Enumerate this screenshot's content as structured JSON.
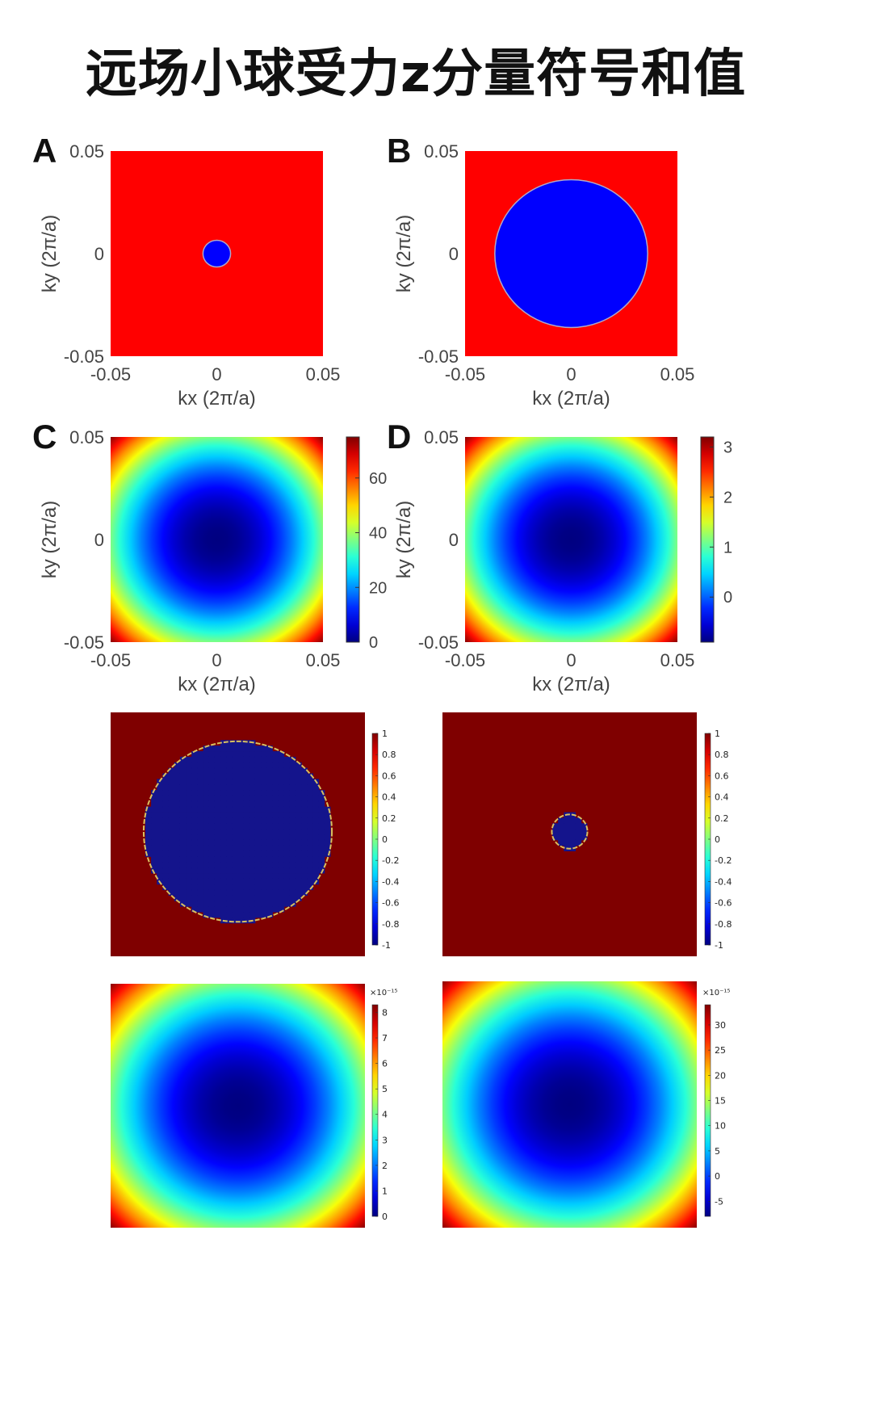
{
  "title": "远场小球受力z分量符号和值",
  "colors": {
    "red": "#ff0000",
    "blue": "#0000ff",
    "darkred": "#7f0000",
    "darkblue": "#14148c",
    "edge": "#d8c060"
  },
  "chart_data": [
    {
      "id": "A",
      "label": "A",
      "type": "heatmap",
      "kind": "sign",
      "xlabel": "kx (2π/a)",
      "ylabel": "ky (2π/a)",
      "xlim": [
        -0.05,
        0.05
      ],
      "ylim": [
        -0.05,
        0.05
      ],
      "xticks": [
        "-0.05",
        "0",
        "0.05"
      ],
      "yticks": [
        "0.05",
        "0",
        "-0.05"
      ],
      "circle_radius": 0.0065
    },
    {
      "id": "B",
      "label": "B",
      "type": "heatmap",
      "kind": "sign",
      "xlabel": "kx (2π/a)",
      "ylabel": "ky (2π/a)",
      "xlim": [
        -0.05,
        0.05
      ],
      "ylim": [
        -0.05,
        0.05
      ],
      "xticks": [
        "-0.05",
        "0",
        "0.05"
      ],
      "yticks": [
        "0.05",
        "0",
        "-0.05"
      ],
      "circle_radius": 0.036
    },
    {
      "id": "C",
      "label": "C",
      "type": "heatmap",
      "kind": "value",
      "xlabel": "kx (2π/a)",
      "ylabel": "ky (2π/a)",
      "xlim": [
        -0.05,
        0.05
      ],
      "ylim": [
        -0.05,
        0.05
      ],
      "xticks": [
        "-0.05",
        "0",
        "0.05"
      ],
      "yticks": [
        "0.05",
        "0",
        "-0.05"
      ],
      "colorbar": {
        "min": 0,
        "max": 75,
        "ticks": [
          "60",
          "40",
          "20",
          "0"
        ],
        "tick_values": [
          60,
          40,
          20,
          0
        ]
      }
    },
    {
      "id": "D",
      "label": "D",
      "type": "heatmap",
      "kind": "value",
      "xlabel": "kx (2π/a)",
      "ylabel": "ky (2π/a)",
      "xlim": [
        -0.05,
        0.05
      ],
      "ylim": [
        -0.05,
        0.05
      ],
      "xticks": [
        "-0.05",
        "0",
        "0.05"
      ],
      "yticks": [
        "0.05",
        "0",
        "-0.05"
      ],
      "colorbar": {
        "min": -0.9,
        "max": 3.2,
        "ticks": [
          "3",
          "2",
          "1",
          "0"
        ],
        "tick_values": [
          3,
          2,
          1,
          0
        ]
      }
    },
    {
      "id": "E",
      "label": "",
      "type": "heatmap",
      "kind": "sign-pixelated",
      "circle_radius": 0.037,
      "colorbar": {
        "min": -1,
        "max": 1,
        "ticks": [
          "1",
          "0.8",
          "0.6",
          "0.4",
          "0.2",
          "0",
          "-0.2",
          "-0.4",
          "-0.6",
          "-0.8",
          "-1"
        ],
        "tick_values": [
          1,
          0.8,
          0.6,
          0.4,
          0.2,
          0,
          -0.2,
          -0.4,
          -0.6,
          -0.8,
          -1
        ]
      }
    },
    {
      "id": "F",
      "label": "",
      "type": "heatmap",
      "kind": "sign-pixelated",
      "circle_radius": 0.007,
      "colorbar": {
        "min": -1,
        "max": 1,
        "ticks": [
          "1",
          "0.8",
          "0.6",
          "0.4",
          "0.2",
          "0",
          "-0.2",
          "-0.4",
          "-0.6",
          "-0.8",
          "-1"
        ],
        "tick_values": [
          1,
          0.8,
          0.6,
          0.4,
          0.2,
          0,
          -0.2,
          -0.4,
          -0.6,
          -0.8,
          -1
        ]
      }
    },
    {
      "id": "G",
      "label": "",
      "type": "heatmap",
      "kind": "value",
      "colorbar": {
        "min": 0,
        "max": 8.3,
        "exponent": "×10⁻¹⁵",
        "ticks": [
          "8",
          "7",
          "6",
          "5",
          "4",
          "3",
          "2",
          "1",
          "0"
        ],
        "tick_values": [
          8,
          7,
          6,
          5,
          4,
          3,
          2,
          1,
          0
        ]
      }
    },
    {
      "id": "H",
      "label": "",
      "type": "heatmap",
      "kind": "value",
      "colorbar": {
        "min": -8,
        "max": 34,
        "exponent": "×10⁻¹⁵",
        "ticks": [
          "30",
          "25",
          "20",
          "15",
          "10",
          "5",
          "0",
          "-5"
        ],
        "tick_values": [
          30,
          25,
          20,
          15,
          10,
          5,
          0,
          -5
        ]
      }
    }
  ]
}
